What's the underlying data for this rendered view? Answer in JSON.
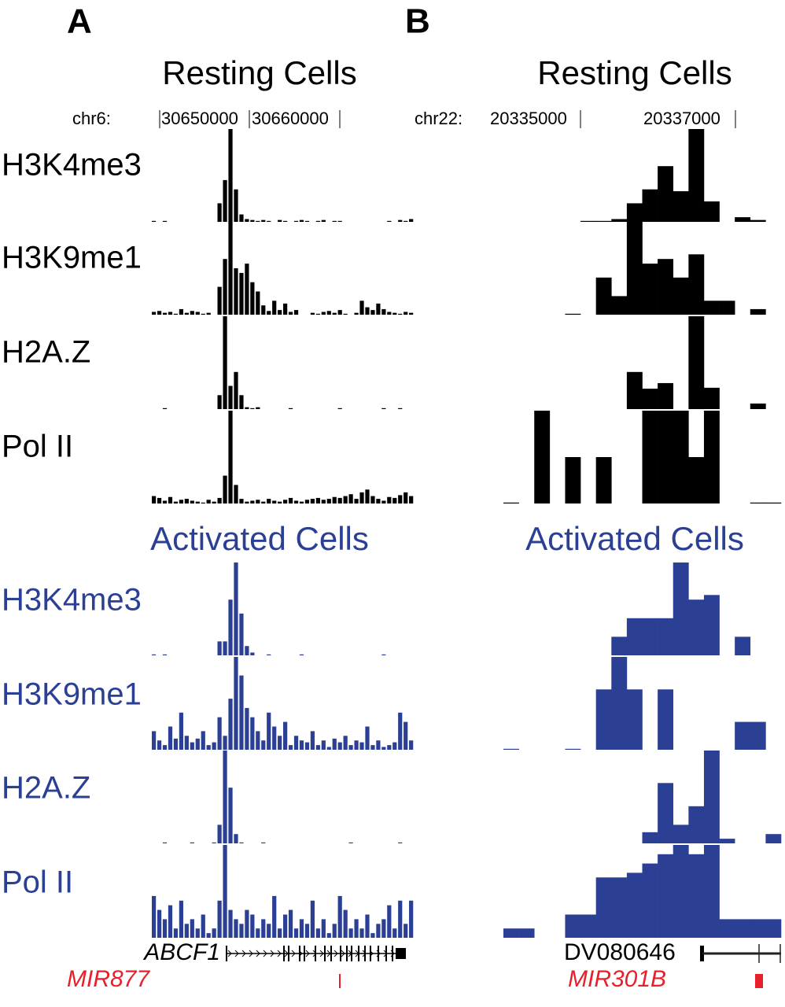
{
  "colors": {
    "resting": "#000000",
    "activated": "#2b3f94",
    "mirna": "#e8202a"
  },
  "track_labels": [
    "H3K4me3",
    "H3K9me1",
    "H2A.Z",
    "Pol II"
  ],
  "panels": [
    {
      "letter": "A",
      "resting_title": "Resting Cells",
      "activated_title": "Activated Cells",
      "chrom": "chr6:",
      "coords": [
        "30650000",
        "30660000"
      ],
      "gene": "ABCF1",
      "mirna": "MIR877",
      "resting": [
        [
          1,
          0,
          1,
          0,
          0,
          0,
          0,
          0,
          0,
          0,
          0,
          0,
          20,
          45,
          100,
          35,
          8,
          3,
          2,
          1,
          2,
          1,
          0,
          2,
          1,
          0,
          1,
          2,
          1,
          0,
          1,
          2,
          0,
          1,
          1,
          0,
          0,
          0,
          0,
          0,
          0,
          0,
          0,
          1,
          0,
          2,
          1,
          3
        ],
        [
          3,
          4,
          2,
          3,
          1,
          6,
          2,
          4,
          3,
          1,
          2,
          0,
          30,
          60,
          100,
          50,
          45,
          55,
          35,
          25,
          10,
          4,
          15,
          5,
          12,
          3,
          5,
          0,
          0,
          2,
          1,
          3,
          4,
          2,
          5,
          1,
          0,
          2,
          15,
          8,
          5,
          12,
          6,
          3,
          2,
          1,
          3,
          2
        ],
        [
          0,
          0,
          1,
          0,
          0,
          0,
          0,
          0,
          0,
          0,
          0,
          0,
          15,
          100,
          25,
          40,
          15,
          2,
          1,
          2,
          0,
          0,
          0,
          0,
          0,
          1,
          0,
          0,
          0,
          0,
          0,
          0,
          0,
          0,
          1,
          0,
          0,
          0,
          0,
          0,
          0,
          0,
          1,
          0,
          0,
          1,
          0,
          0
        ],
        [
          8,
          6,
          3,
          7,
          2,
          4,
          5,
          3,
          2,
          1,
          4,
          2,
          6,
          30,
          100,
          20,
          5,
          2,
          3,
          4,
          2,
          5,
          3,
          2,
          4,
          6,
          3,
          2,
          4,
          5,
          6,
          4,
          5,
          7,
          6,
          8,
          10,
          5,
          12,
          15,
          8,
          5,
          3,
          7,
          6,
          9,
          12,
          8
        ]
      ],
      "activated": [
        [
          1,
          0,
          1,
          0,
          0,
          0,
          0,
          0,
          0,
          0,
          0,
          0,
          15,
          15,
          60,
          100,
          45,
          10,
          3,
          0,
          0,
          1,
          0,
          0,
          0,
          0,
          0,
          1,
          0,
          0,
          0,
          0,
          0,
          0,
          0,
          0,
          0,
          0,
          0,
          0,
          0,
          0,
          1,
          0,
          0,
          0,
          0,
          0
        ],
        [
          20,
          10,
          5,
          25,
          12,
          40,
          15,
          8,
          12,
          20,
          5,
          8,
          35,
          15,
          55,
          100,
          80,
          45,
          35,
          20,
          10,
          40,
          25,
          15,
          30,
          5,
          15,
          10,
          8,
          20,
          5,
          10,
          3,
          12,
          8,
          15,
          5,
          10,
          8,
          25,
          5,
          10,
          3,
          5,
          8,
          40,
          30,
          10
        ],
        [
          0,
          0,
          1,
          0,
          0,
          0,
          0,
          1,
          0,
          0,
          0,
          1,
          20,
          100,
          60,
          10,
          1,
          0,
          0,
          0,
          1,
          0,
          0,
          0,
          0,
          0,
          0,
          0,
          0,
          0,
          0,
          0,
          0,
          0,
          0,
          0,
          1,
          0,
          0,
          0,
          0,
          0,
          0,
          0,
          0,
          1,
          0,
          0
        ],
        [
          45,
          30,
          20,
          35,
          10,
          40,
          15,
          20,
          10,
          25,
          5,
          10,
          40,
          100,
          30,
          20,
          15,
          30,
          25,
          10,
          20,
          15,
          45,
          10,
          25,
          30,
          10,
          20,
          15,
          40,
          10,
          20,
          5,
          15,
          45,
          30,
          10,
          20,
          10,
          25,
          5,
          15,
          20,
          35,
          10,
          40,
          15,
          40
        ]
      ]
    },
    {
      "letter": "B",
      "resting_title": "Resting Cells",
      "activated_title": "Activated Cells",
      "chrom": "chr22:",
      "coords": [
        "20335000",
        "20337000"
      ],
      "gene": "DV080646",
      "mirna": "MIR301B",
      "resting": [
        [
          0,
          0,
          0,
          0,
          0,
          1,
          1,
          3,
          20,
          35,
          60,
          33,
          100,
          22,
          0,
          5,
          2,
          0
        ],
        [
          0,
          0,
          0,
          0,
          1,
          0,
          40,
          20,
          100,
          55,
          60,
          40,
          65,
          15,
          15,
          0,
          6,
          0
        ],
        [
          0,
          0,
          0,
          0,
          0,
          0,
          0,
          0,
          40,
          22,
          28,
          0,
          100,
          23,
          0,
          0,
          6,
          0
        ],
        [
          1,
          0,
          100,
          0,
          50,
          0,
          50,
          0,
          0,
          100,
          100,
          100,
          50,
          100,
          0,
          0,
          1,
          1
        ]
      ],
      "activated": [
        [
          0,
          0,
          0,
          0,
          0,
          0,
          0,
          20,
          40,
          40,
          40,
          100,
          60,
          65,
          0,
          20,
          0,
          0
        ],
        [
          1,
          0,
          0,
          0,
          1,
          0,
          65,
          100,
          65,
          0,
          65,
          0,
          0,
          0,
          0,
          30,
          30,
          0
        ],
        [
          0,
          0,
          0,
          0,
          0,
          0,
          0,
          0,
          0,
          12,
          65,
          20,
          40,
          100,
          5,
          0,
          0,
          10
        ],
        [
          10,
          10,
          0,
          0,
          25,
          25,
          65,
          65,
          70,
          80,
          90,
          100,
          90,
          100,
          20,
          20,
          20,
          20
        ]
      ]
    }
  ]
}
